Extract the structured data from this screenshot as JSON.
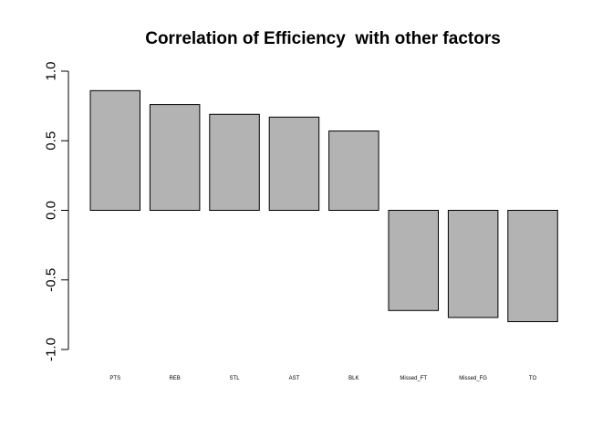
{
  "chart_data": {
    "type": "bar",
    "title": "Correlation of Efficiency  with other factors",
    "xlabel": "",
    "ylabel": "",
    "categories": [
      "PTS",
      "REB",
      "STL",
      "AST",
      "BLK",
      "Missed_FT",
      "Missed_FG",
      "TO"
    ],
    "values": [
      0.86,
      0.76,
      0.69,
      0.67,
      0.57,
      -0.72,
      -0.77,
      -0.8
    ],
    "ylim": [
      -1.0,
      1.0
    ],
    "yticks": [
      -1.0,
      -0.5,
      0.0,
      0.5,
      1.0
    ],
    "ytick_labels": [
      "-1.0",
      "-0.5",
      "0.0",
      "0.5",
      "1.0"
    ],
    "grid": false,
    "legend": "none",
    "colors": {
      "bar_fill": "#b3b3b3",
      "bar_stroke": "#000000",
      "axis": "#000000",
      "background": "#ffffff"
    }
  }
}
